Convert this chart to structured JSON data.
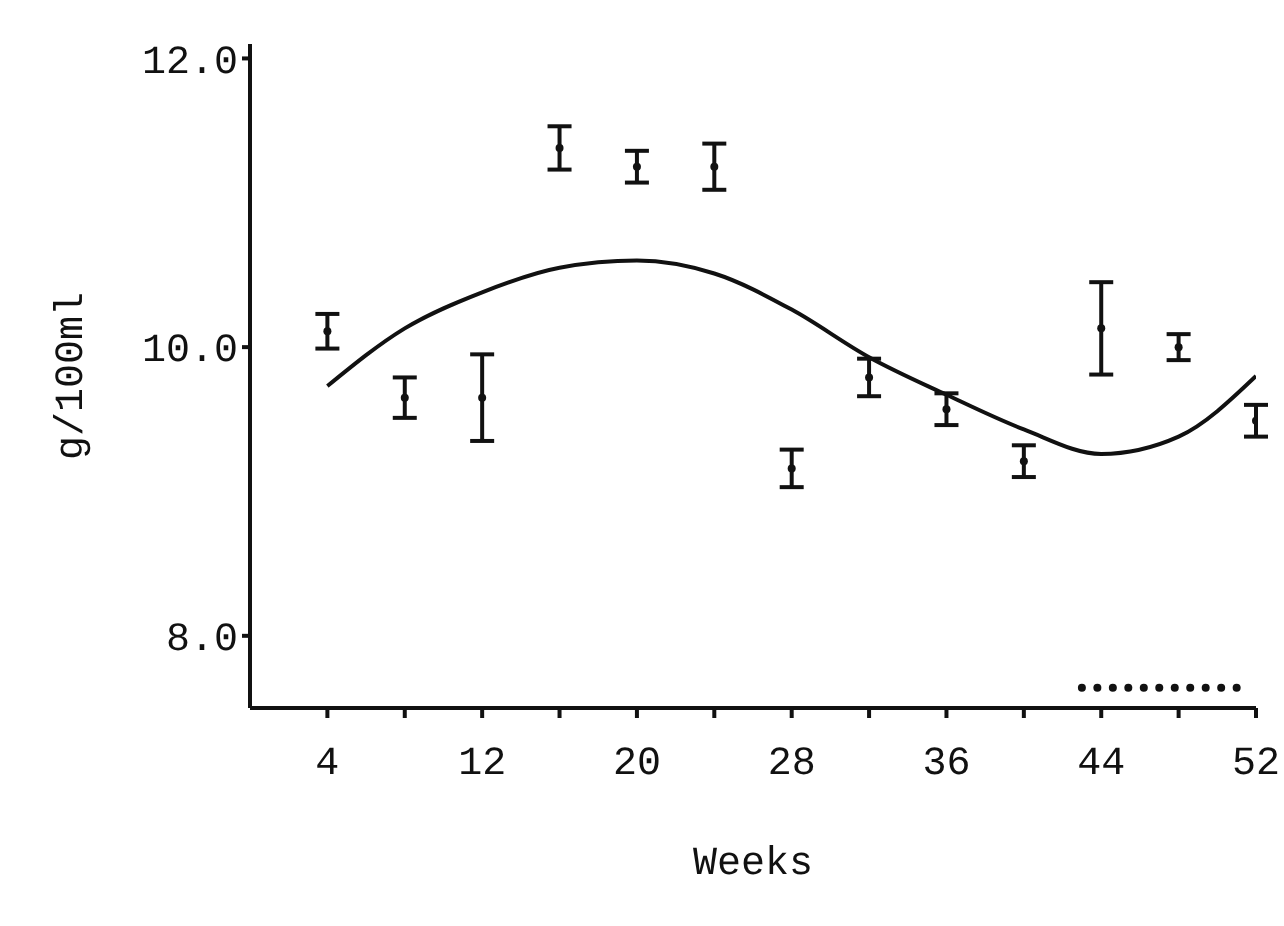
{
  "chart_data": {
    "type": "scatter",
    "xlabel": "Weeks",
    "ylabel": "g/100ml",
    "xlim": [
      0,
      52
    ],
    "ylim": [
      7.5,
      12.1
    ],
    "xticks": [
      4,
      {
        "value": 8,
        "label": null
      },
      12,
      {
        "value": 16,
        "label": null
      },
      20,
      {
        "value": 24,
        "label": null
      },
      28,
      {
        "value": 32,
        "label": null
      },
      36,
      {
        "value": 40,
        "label": null
      },
      44,
      {
        "value": 48,
        "label": null
      },
      52
    ],
    "yticks": [
      {
        "value": 8,
        "label": "8.0"
      },
      {
        "value": 10,
        "label": "10.0"
      },
      {
        "value": 12,
        "label": "12.0"
      }
    ],
    "grid": false,
    "marker": "circle",
    "series": [
      {
        "color": "#111111",
        "x": [
          4,
          8,
          12,
          16,
          20,
          24,
          28,
          32,
          36,
          40,
          44,
          48,
          52
        ],
        "values": [
          10.11,
          9.65,
          9.65,
          11.38,
          11.25,
          11.25,
          9.16,
          9.79,
          9.57,
          9.21,
          10.13,
          10.0,
          9.49
        ],
        "errors": [
          0.12,
          0.14,
          0.3,
          0.15,
          0.11,
          0.16,
          0.13,
          0.13,
          0.11,
          0.11,
          0.32,
          0.09,
          0.11
        ]
      },
      {
        "type": "line",
        "color": "#111111",
        "line_style": "solid",
        "marker": "none",
        "x": [
          4,
          8,
          12,
          16,
          20,
          24,
          28,
          32,
          36,
          40,
          44,
          48,
          52
        ],
        "values": [
          9.73,
          10.13,
          10.38,
          10.55,
          10.6,
          10.51,
          10.26,
          9.93,
          9.67,
          9.43,
          9.26,
          9.38,
          9.8
        ]
      },
      {
        "color": "#111111",
        "x": [
          43,
          43.8,
          44.6,
          45.4,
          46.2,
          47,
          47.8,
          48.6,
          49.4,
          50.2,
          51
        ],
        "values": [
          7.64,
          7.64,
          7.64,
          7.64,
          7.64,
          7.64,
          7.64,
          7.64,
          7.64,
          7.64,
          7.64
        ]
      }
    ]
  }
}
